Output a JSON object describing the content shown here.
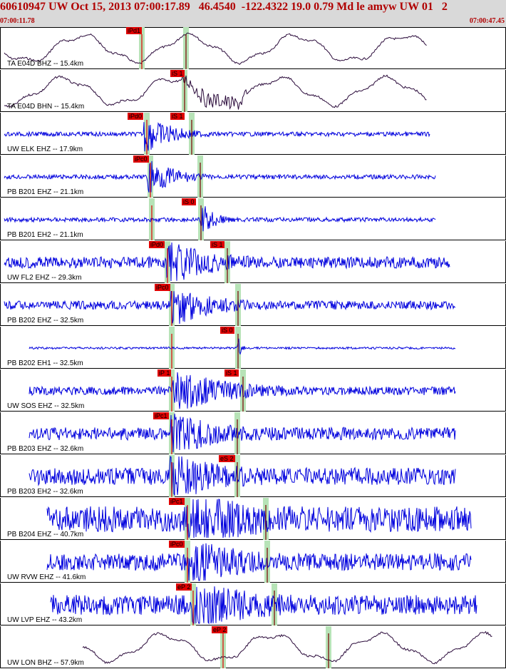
{
  "header": {
    "title": "60610947 UW Oct 15, 2013 07:00:17.89   46.4540  -122.4322 19.0 0.79 Md le amyw UW 01   2",
    "time_start": "07:00:11.78",
    "time_end": "07:00:47.45"
  },
  "colors": {
    "header_bg": "#d9d9d9",
    "header_text": "#b00000",
    "trace_broadband": "#2a0a3a",
    "trace_short": "#0000dd",
    "pick": "#e00000",
    "phase_window": "#b7e3b7"
  },
  "traces": [
    {
      "label": "TA E04D BHZ -- 15.4km",
      "picks": [
        "iPd1"
      ],
      "color": "broadband"
    },
    {
      "label": "TA E04D BHN -- 15.4km",
      "picks": [
        "iS 1"
      ],
      "color": "broadband"
    },
    {
      "label": "UW ELK EHZ -- 17.9km",
      "picks": [
        "iPd0",
        "iS 1"
      ],
      "color": "short"
    },
    {
      "label": "PB B201 EHZ -- 21.1km",
      "picks": [
        "iPc0"
      ],
      "color": "short"
    },
    {
      "label": "PB B201 EH2 -- 21.1km",
      "picks": [
        "iS 0"
      ],
      "color": "short"
    },
    {
      "label": "UW FL2 EHZ -- 29.3km",
      "picks": [
        "iPd0",
        "iS 1"
      ],
      "color": "short"
    },
    {
      "label": "PB B202 EHZ -- 32.5km",
      "picks": [
        "iPc0"
      ],
      "color": "short"
    },
    {
      "label": "PB B202 EH1 -- 32.5km",
      "picks": [
        "iS 0"
      ],
      "color": "short"
    },
    {
      "label": "UW SOS EHZ -- 32.5km",
      "picks": [
        "iP 1",
        "iS 1"
      ],
      "color": "short"
    },
    {
      "label": "PB B203 EHZ -- 32.6km",
      "picks": [
        "iPc1"
      ],
      "color": "short"
    },
    {
      "label": "PB B203 EH2 -- 32.6km",
      "picks": [
        "eS 2"
      ],
      "color": "short"
    },
    {
      "label": "PB B204 EHZ -- 40.7km",
      "picks": [
        "iPc1"
      ],
      "color": "short"
    },
    {
      "label": "UW RVW EHZ -- 41.6km",
      "picks": [
        "iPc0"
      ],
      "color": "short"
    },
    {
      "label": "UW LVP EHZ -- 43.2km",
      "picks": [
        "eP 2"
      ],
      "color": "short"
    },
    {
      "label": "UW LON BHZ -- 57.9km",
      "picks": [
        "eP 2"
      ],
      "color": "broadband"
    }
  ]
}
